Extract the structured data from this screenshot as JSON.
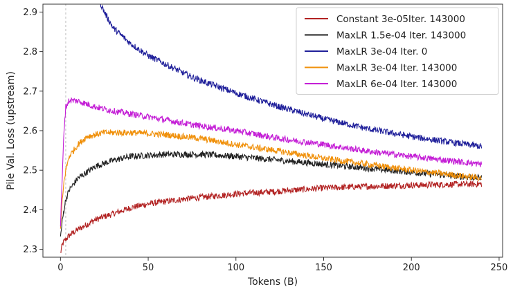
{
  "chart_data": {
    "type": "line",
    "xlabel": "Tokens (B)",
    "ylabel": "Pile Val. Loss (upstream)",
    "xlim": [
      -10,
      252
    ],
    "ylim": [
      2.28,
      2.92
    ],
    "xticks": [
      0,
      50,
      100,
      150,
      200,
      250
    ],
    "yticks": [
      2.3,
      2.4,
      2.5,
      2.6,
      2.7,
      2.8,
      2.9
    ],
    "xtick_labels": [
      "0",
      "50",
      "100",
      "150",
      "200",
      "250"
    ],
    "ytick_labels": [
      "2.3",
      "2.4",
      "2.5",
      "2.6",
      "2.7",
      "2.8",
      "2.9"
    ],
    "grid": false,
    "legend_position": "top-right",
    "vline_x": 3,
    "series": [
      {
        "name": "Constant 3e-05Iter. 143000",
        "color": "#b22222",
        "points": [
          [
            0,
            2.29
          ],
          [
            1,
            2.31
          ],
          [
            2,
            2.32
          ],
          [
            5,
            2.335
          ],
          [
            10,
            2.35
          ],
          [
            20,
            2.375
          ],
          [
            30,
            2.39
          ],
          [
            40,
            2.405
          ],
          [
            50,
            2.415
          ],
          [
            70,
            2.427
          ],
          [
            100,
            2.44
          ],
          [
            125,
            2.447
          ],
          [
            150,
            2.455
          ],
          [
            175,
            2.459
          ],
          [
            200,
            2.462
          ],
          [
            220,
            2.464
          ],
          [
            240,
            2.465
          ]
        ]
      },
      {
        "name": "MaxLR 1.5e-04 Iter. 143000",
        "color": "#222222",
        "points": [
          [
            0,
            2.33
          ],
          [
            1,
            2.37
          ],
          [
            2,
            2.4
          ],
          [
            3,
            2.425
          ],
          [
            5,
            2.45
          ],
          [
            10,
            2.48
          ],
          [
            20,
            2.51
          ],
          [
            30,
            2.525
          ],
          [
            40,
            2.535
          ],
          [
            60,
            2.54
          ],
          [
            80,
            2.54
          ],
          [
            100,
            2.535
          ],
          [
            125,
            2.525
          ],
          [
            150,
            2.515
          ],
          [
            175,
            2.505
          ],
          [
            200,
            2.495
          ],
          [
            220,
            2.487
          ],
          [
            240,
            2.48
          ]
        ]
      },
      {
        "name": "MaxLR 3e-04 Iter. 0",
        "color": "#1f1f9a",
        "points": [
          [
            22,
            2.93
          ],
          [
            25,
            2.9
          ],
          [
            30,
            2.86
          ],
          [
            40,
            2.82
          ],
          [
            50,
            2.79
          ],
          [
            75,
            2.735
          ],
          [
            100,
            2.695
          ],
          [
            125,
            2.66
          ],
          [
            150,
            2.63
          ],
          [
            175,
            2.605
          ],
          [
            200,
            2.585
          ],
          [
            220,
            2.572
          ],
          [
            240,
            2.56
          ]
        ]
      },
      {
        "name": "MaxLR 3e-04 Iter. 143000",
        "color": "#f0900a",
        "points": [
          [
            0,
            2.35
          ],
          [
            1,
            2.42
          ],
          [
            2,
            2.47
          ],
          [
            3,
            2.5
          ],
          [
            5,
            2.535
          ],
          [
            10,
            2.565
          ],
          [
            15,
            2.585
          ],
          [
            25,
            2.595
          ],
          [
            40,
            2.595
          ],
          [
            60,
            2.59
          ],
          [
            80,
            2.58
          ],
          [
            100,
            2.565
          ],
          [
            125,
            2.548
          ],
          [
            150,
            2.53
          ],
          [
            175,
            2.515
          ],
          [
            200,
            2.5
          ],
          [
            220,
            2.49
          ],
          [
            240,
            2.48
          ]
        ]
      },
      {
        "name": "MaxLR 6e-04 Iter. 143000",
        "color": "#c41fd6",
        "points": [
          [
            0,
            2.36
          ],
          [
            1,
            2.48
          ],
          [
            2,
            2.6
          ],
          [
            3,
            2.66
          ],
          [
            5,
            2.677
          ],
          [
            10,
            2.675
          ],
          [
            20,
            2.66
          ],
          [
            30,
            2.65
          ],
          [
            50,
            2.635
          ],
          [
            75,
            2.615
          ],
          [
            100,
            2.6
          ],
          [
            125,
            2.58
          ],
          [
            150,
            2.565
          ],
          [
            175,
            2.548
          ],
          [
            200,
            2.535
          ],
          [
            220,
            2.525
          ],
          [
            240,
            2.515
          ]
        ]
      }
    ]
  }
}
